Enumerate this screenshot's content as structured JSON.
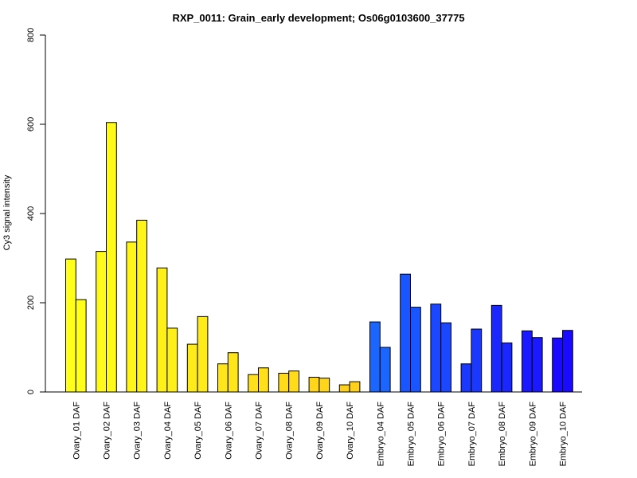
{
  "chart_data": {
    "type": "bar",
    "title": "RXP_0011: Grain_early development; Os06g0103600_37775",
    "xlabel": "",
    "ylabel": "Cy3 signal intensity",
    "ylim": [
      0,
      800
    ],
    "yticks": [
      0,
      200,
      400,
      600,
      800
    ],
    "grid": false,
    "categories": [
      {
        "label": "Ovary_01 DAF",
        "values": [
          298,
          207
        ],
        "color": "#FFFF1A"
      },
      {
        "label": "Ovary_02 DAF",
        "values": [
          315,
          604
        ],
        "color": "#FFFA1A"
      },
      {
        "label": "Ovary_03 DAF",
        "values": [
          336,
          385
        ],
        "color": "#FFF51A"
      },
      {
        "label": "Ovary_04 DAF",
        "values": [
          278,
          143
        ],
        "color": "#FFF01A"
      },
      {
        "label": "Ovary_05 DAF",
        "values": [
          107,
          169
        ],
        "color": "#FFEB1A"
      },
      {
        "label": "Ovary_06 DAF",
        "values": [
          63,
          88
        ],
        "color": "#FFE61A"
      },
      {
        "label": "Ovary_07 DAF",
        "values": [
          39,
          54
        ],
        "color": "#FFE01A"
      },
      {
        "label": "Ovary_08 DAF",
        "values": [
          42,
          47
        ],
        "color": "#FFDB1A"
      },
      {
        "label": "Ovary_09 DAF",
        "values": [
          33,
          31
        ],
        "color": "#FFD61A"
      },
      {
        "label": "Ovary_10 DAF",
        "values": [
          16,
          23
        ],
        "color": "#FFD11A"
      },
      {
        "label": "Embryo_04 DAF",
        "values": [
          157,
          100
        ],
        "color": "#1A66FF"
      },
      {
        "label": "Embryo_05 DAF",
        "values": [
          264,
          190
        ],
        "color": "#1A56FF"
      },
      {
        "label": "Embryo_06 DAF",
        "values": [
          197,
          155
        ],
        "color": "#1A47FF"
      },
      {
        "label": "Embryo_07 DAF",
        "values": [
          63,
          141
        ],
        "color": "#1A38FF"
      },
      {
        "label": "Embryo_08 DAF",
        "values": [
          194,
          110
        ],
        "color": "#1A28FF"
      },
      {
        "label": "Embryo_09 DAF",
        "values": [
          137,
          122
        ],
        "color": "#1A19FF"
      },
      {
        "label": "Embryo_10 DAF",
        "values": [
          121,
          138
        ],
        "color": "#1A0AFF"
      }
    ]
  }
}
